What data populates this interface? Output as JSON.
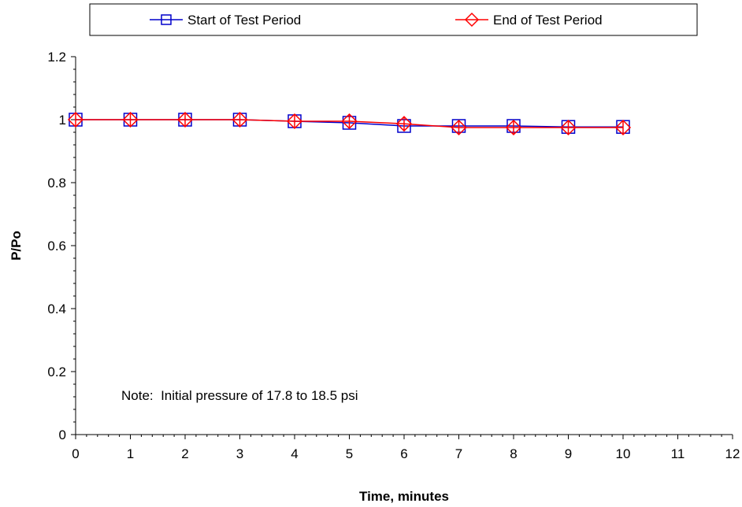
{
  "chart_data": {
    "type": "line",
    "title": "",
    "xlabel": "Time, minutes",
    "ylabel": "P/Po",
    "xlim": [
      0,
      12
    ],
    "ylim": [
      0,
      1.2
    ],
    "x_ticks": [
      0,
      1,
      2,
      3,
      4,
      5,
      6,
      7,
      8,
      9,
      10,
      11,
      12
    ],
    "y_ticks": [
      0,
      0.2,
      0.4,
      0.6,
      0.8,
      1,
      1.2
    ],
    "x_tick_labels": [
      "0",
      "1",
      "2",
      "3",
      "4",
      "5",
      "6",
      "7",
      "8",
      "9",
      "10",
      "11",
      "12"
    ],
    "y_tick_labels": [
      "0",
      "0.2",
      "0.4",
      "0.6",
      "0.8",
      "1",
      "1.2"
    ],
    "grid": false,
    "legend_position": "top",
    "annotation": "Note:  Initial pressure of 17.8 to 18.5 psi",
    "series": [
      {
        "name": "Start of Test Period",
        "color": "#0000CC",
        "marker": "square",
        "x": [
          0,
          1,
          2,
          3,
          4,
          5,
          6,
          7,
          8,
          9,
          10
        ],
        "y": [
          1.0,
          1.0,
          1.0,
          1.0,
          0.995,
          0.99,
          0.98,
          0.98,
          0.98,
          0.977,
          0.977
        ]
      },
      {
        "name": "End of Test Period",
        "color": "#FF0000",
        "marker": "diamond",
        "x": [
          0,
          1,
          2,
          3,
          4,
          5,
          6,
          7,
          8,
          9,
          10
        ],
        "y": [
          1.0,
          1.0,
          1.0,
          1.0,
          0.995,
          0.995,
          0.987,
          0.975,
          0.975,
          0.975,
          0.975
        ]
      }
    ]
  }
}
